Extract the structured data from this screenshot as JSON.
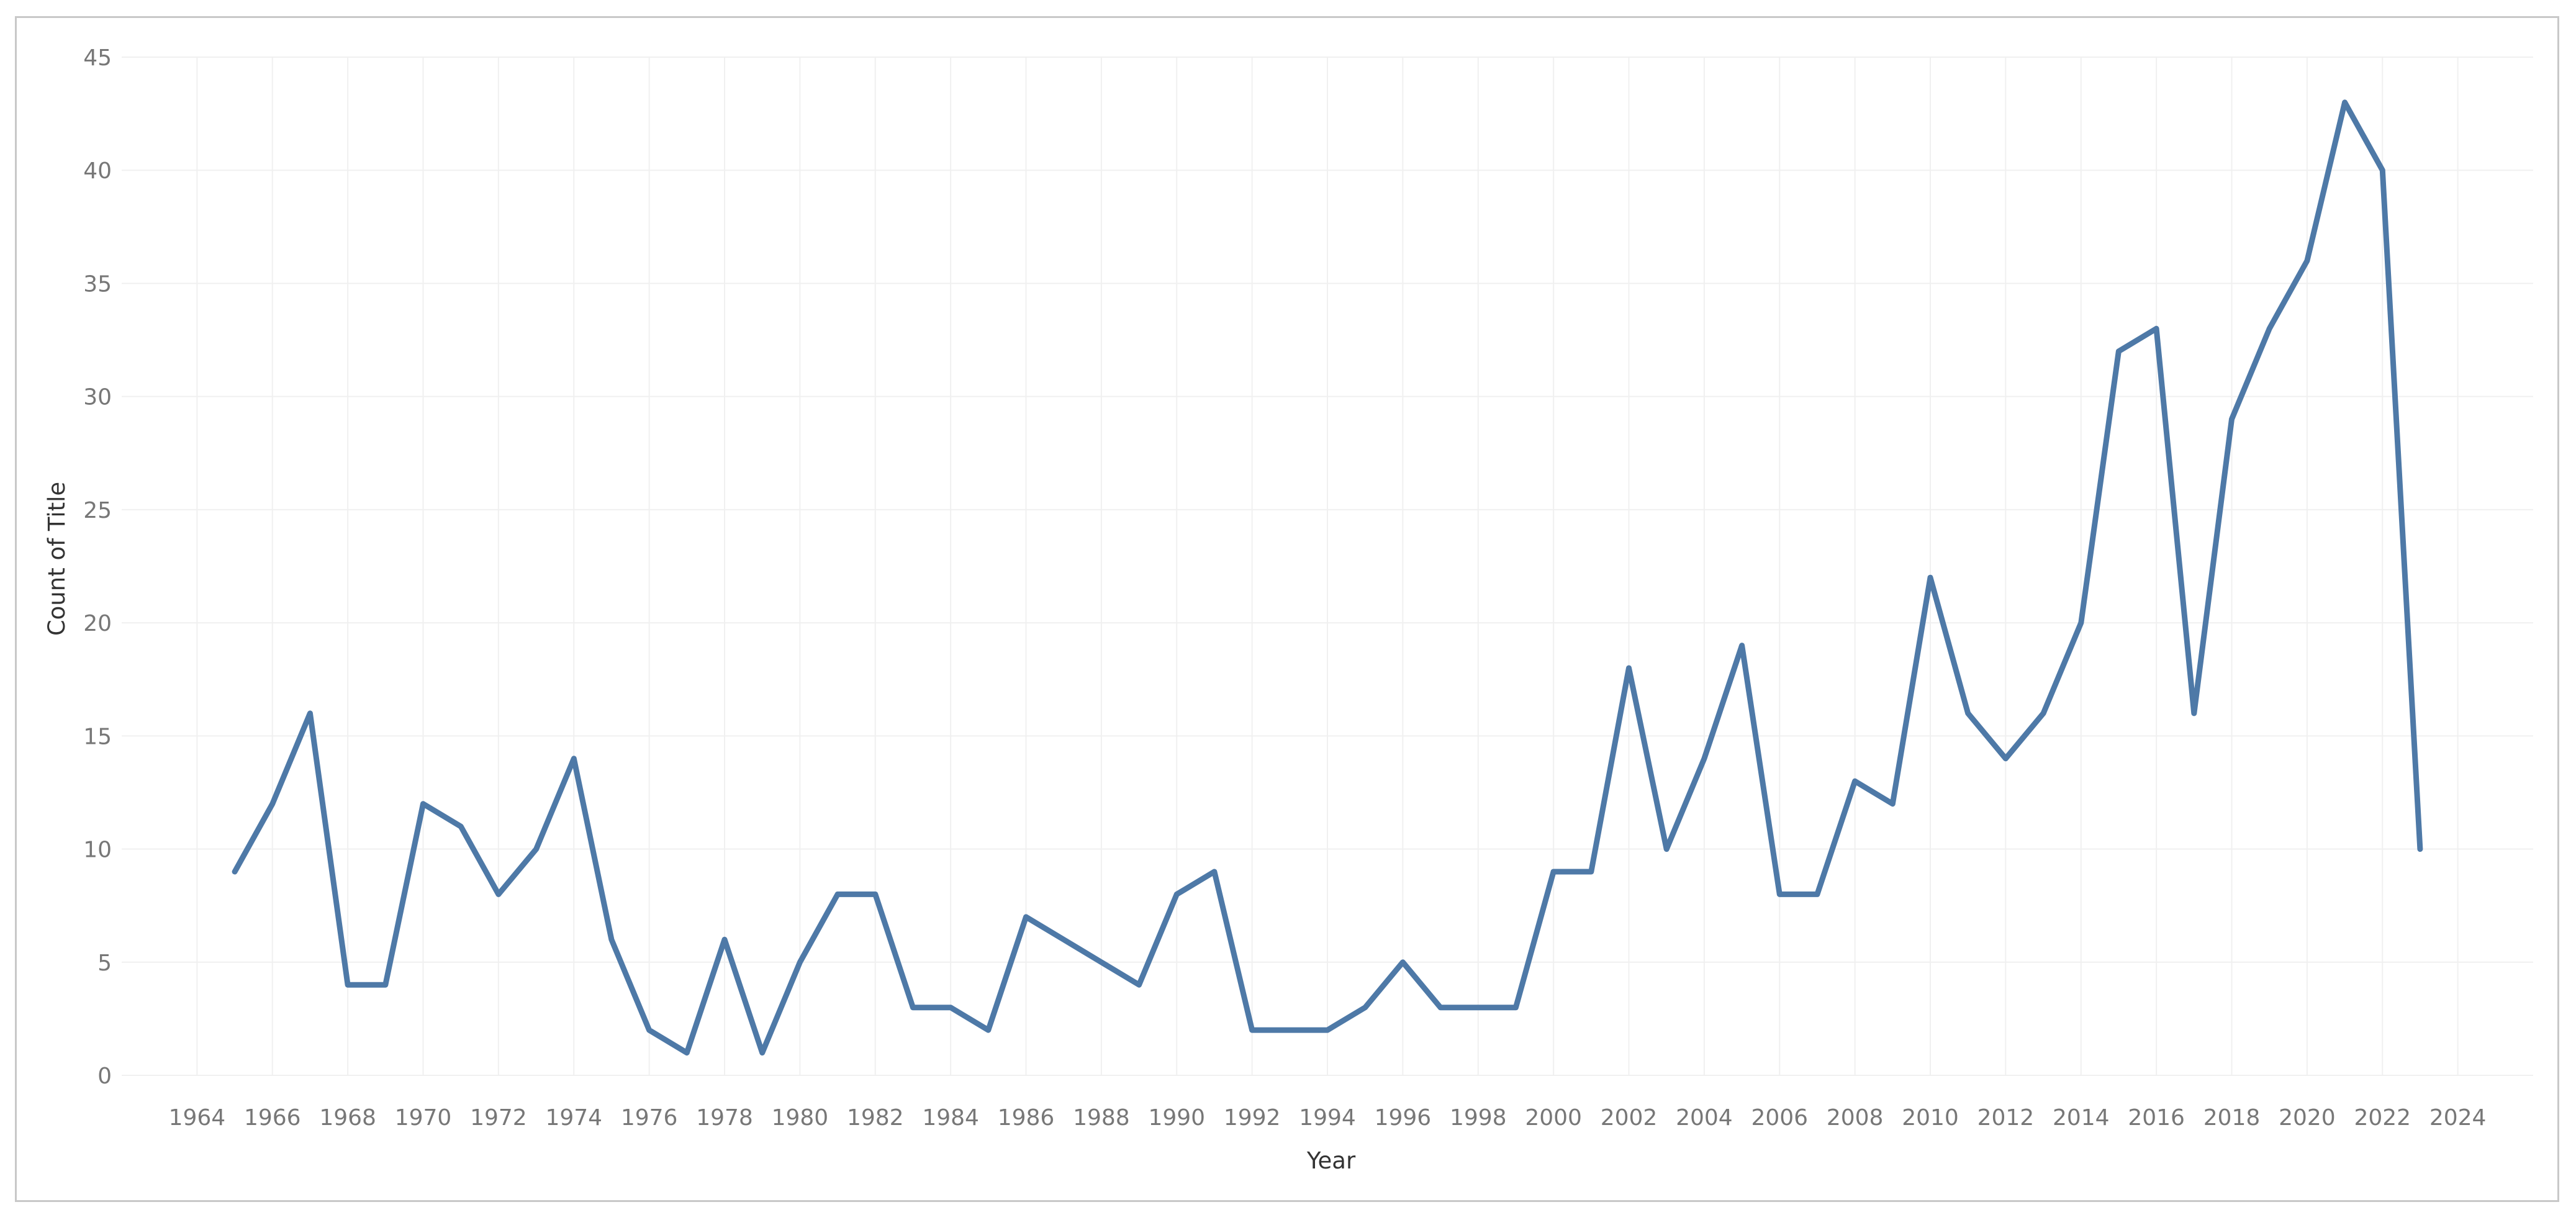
{
  "chart_data": {
    "type": "line",
    "title": "",
    "xlabel": "Year",
    "ylabel": "Count of Title",
    "xlim": [
      1962,
      2026
    ],
    "ylim": [
      0,
      45
    ],
    "x_ticks": [
      1964,
      1966,
      1968,
      1970,
      1972,
      1974,
      1976,
      1978,
      1980,
      1982,
      1984,
      1986,
      1988,
      1990,
      1992,
      1994,
      1996,
      1998,
      2000,
      2002,
      2004,
      2006,
      2008,
      2010,
      2012,
      2014,
      2016,
      2018,
      2020,
      2022,
      2024
    ],
    "y_ticks": [
      0,
      5,
      10,
      15,
      20,
      25,
      30,
      35,
      40,
      45
    ],
    "grid": true,
    "legend": "none",
    "colors": {
      "series": "#4e79a7",
      "grid": "#f0f0f0",
      "tick_text": "#777777",
      "axis_title": "#333333",
      "frame": "#c8c8c8"
    },
    "series": [
      {
        "x": [
          1965,
          1966,
          1967,
          1968,
          1969,
          1970,
          1971,
          1972,
          1973,
          1974,
          1975,
          1976,
          1977,
          1978,
          1979,
          1980,
          1981,
          1982,
          1983,
          1984,
          1985,
          1986,
          1987,
          1988,
          1989,
          1990,
          1991,
          1992,
          1993,
          1994,
          1995,
          1996,
          1997,
          1998,
          1999,
          2000,
          2001,
          2002,
          2003,
          2004,
          2005,
          2006,
          2007,
          2008,
          2009,
          2010,
          2011,
          2012,
          2013,
          2014,
          2015,
          2016,
          2017,
          2018,
          2019,
          2020,
          2021,
          2022,
          2023
        ],
        "values": [
          9,
          12,
          16,
          4,
          4,
          12,
          11,
          8,
          10,
          14,
          6,
          2,
          1,
          6,
          1,
          5,
          8,
          8,
          3,
          3,
          2,
          7,
          6,
          5,
          4,
          8,
          9,
          2,
          2,
          2,
          3,
          5,
          3,
          3,
          3,
          9,
          9,
          18,
          10,
          14,
          19,
          8,
          8,
          13,
          12,
          22,
          16,
          14,
          16,
          20,
          32,
          33,
          16,
          29,
          33,
          36,
          43,
          40,
          10
        ]
      }
    ]
  }
}
